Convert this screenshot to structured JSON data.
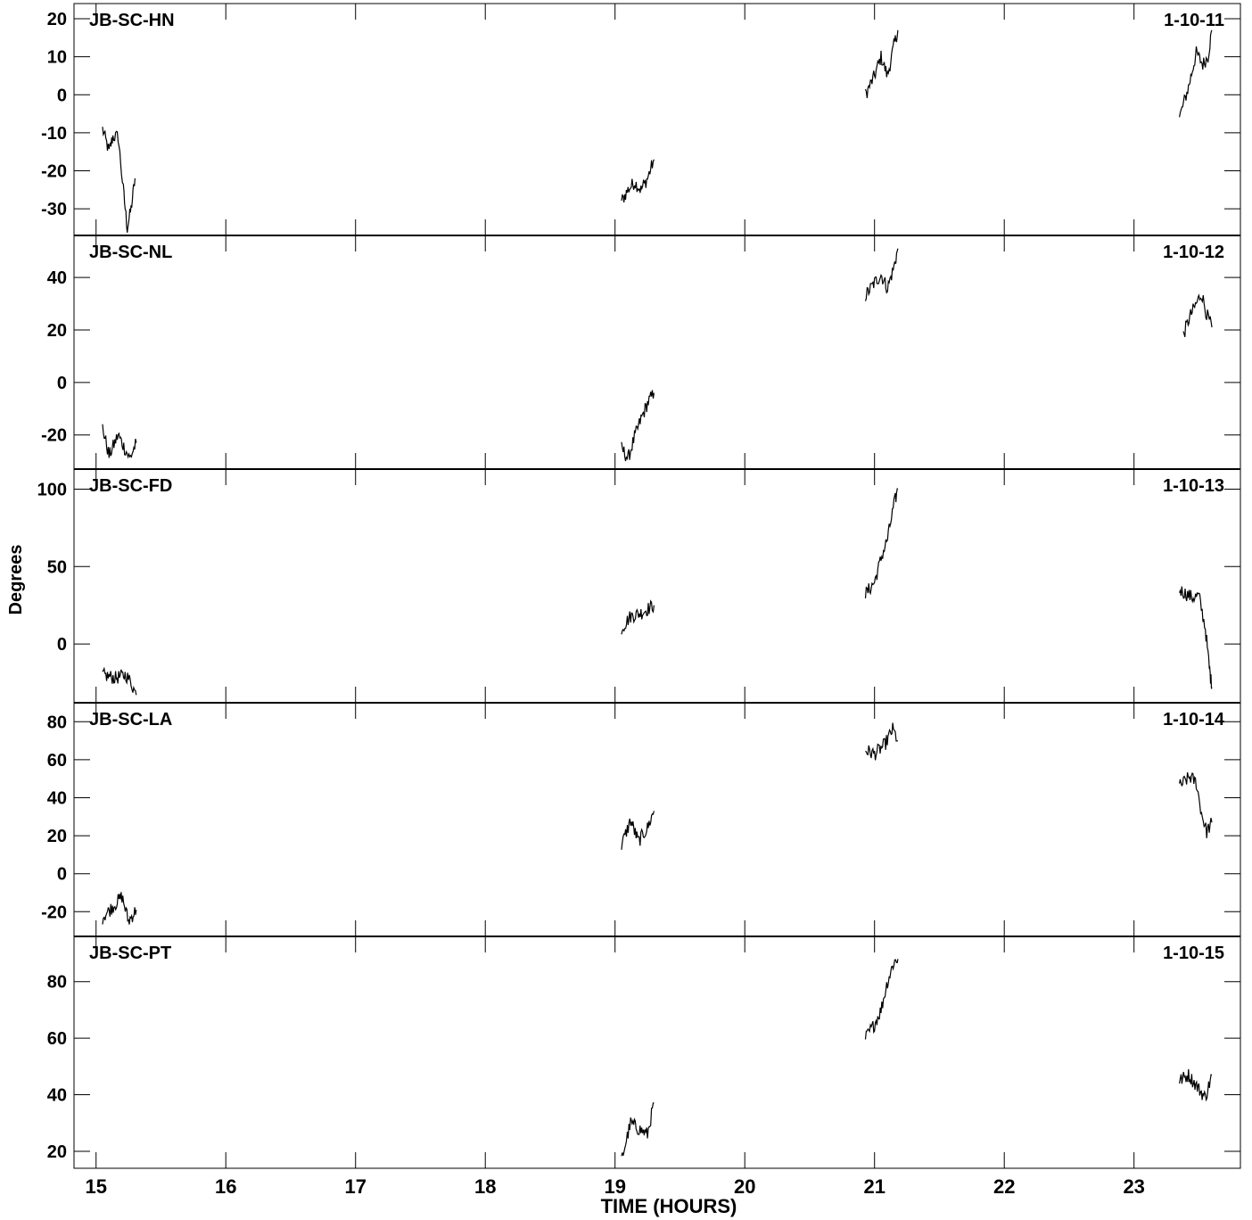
{
  "chart_data": {
    "type": "line",
    "ylabel": "Degrees",
    "xlabel": "TIME (HOURS)",
    "xlim": [
      14.83,
      23.82
    ],
    "x_ticks": [
      15,
      16,
      17,
      18,
      19,
      20,
      21,
      22,
      23
    ],
    "x_tick_labels": [
      "15",
      "16",
      "17",
      "18",
      "19",
      "20",
      "21",
      "22",
      "23"
    ],
    "color": "#000000",
    "panels": [
      {
        "baseline": "JB-SC-HN",
        "id": "1-10-11",
        "ylim": [
          -37,
          24
        ],
        "y_ticks": [
          20,
          10,
          0,
          -10,
          -20,
          -30
        ],
        "y_tick_labels": [
          "20",
          "10",
          "0",
          "-10",
          "-20",
          "-30"
        ],
        "segments": [
          [
            [
              15.05,
              -9
            ],
            [
              15.1,
              -15
            ],
            [
              15.13,
              -11
            ],
            [
              15.17,
              -11
            ],
            [
              15.21,
              -25
            ],
            [
              15.24,
              -35
            ],
            [
              15.27,
              -30
            ],
            [
              15.3,
              -22
            ]
          ],
          [
            [
              19.05,
              -28
            ],
            [
              19.1,
              -25
            ],
            [
              19.15,
              -23
            ],
            [
              19.2,
              -25
            ],
            [
              19.25,
              -22
            ],
            [
              19.3,
              -17
            ]
          ],
          [
            [
              20.93,
              0
            ],
            [
              21.0,
              5
            ],
            [
              21.05,
              10
            ],
            [
              21.1,
              5
            ],
            [
              21.15,
              13
            ],
            [
              21.18,
              17
            ]
          ],
          [
            [
              23.35,
              -6
            ],
            [
              23.42,
              2
            ],
            [
              23.48,
              11
            ],
            [
              23.53,
              8
            ],
            [
              23.57,
              10
            ],
            [
              23.6,
              17
            ]
          ]
        ]
      },
      {
        "baseline": "JB-SC-NL",
        "id": "1-10-12",
        "ylim": [
          -33,
          56
        ],
        "y_ticks": [
          40,
          20,
          0,
          -20
        ],
        "y_tick_labels": [
          "40",
          "20",
          "0",
          "-20"
        ],
        "segments": [
          [
            [
              15.05,
              -17
            ],
            [
              15.1,
              -28
            ],
            [
              15.17,
              -20
            ],
            [
              15.22,
              -25
            ],
            [
              15.26,
              -29
            ],
            [
              15.31,
              -23
            ]
          ],
          [
            [
              19.05,
              -25
            ],
            [
              19.1,
              -29
            ],
            [
              19.15,
              -21
            ],
            [
              19.2,
              -14
            ],
            [
              19.25,
              -8
            ],
            [
              19.3,
              -4
            ]
          ],
          [
            [
              20.93,
              33
            ],
            [
              21.0,
              38
            ],
            [
              21.05,
              41
            ],
            [
              21.1,
              36
            ],
            [
              21.15,
              44
            ],
            [
              21.18,
              51
            ]
          ],
          [
            [
              23.38,
              18
            ],
            [
              23.43,
              25
            ],
            [
              23.48,
              30
            ],
            [
              23.52,
              34
            ],
            [
              23.56,
              26
            ],
            [
              23.6,
              21
            ]
          ]
        ]
      },
      {
        "baseline": "JB-SC-FD",
        "id": "1-10-13",
        "ylim": [
          -38,
          113
        ],
        "y_ticks": [
          100,
          50,
          0
        ],
        "y_tick_labels": [
          "100",
          "50",
          "0"
        ],
        "segments": [
          [
            [
              15.05,
              -20
            ],
            [
              15.15,
              -22
            ],
            [
              15.23,
              -20
            ],
            [
              15.27,
              -25
            ],
            [
              15.31,
              -33
            ]
          ],
          [
            [
              19.05,
              10
            ],
            [
              19.12,
              18
            ],
            [
              19.2,
              20
            ],
            [
              19.3,
              25
            ]
          ],
          [
            [
              20.93,
              32
            ],
            [
              21.0,
              40
            ],
            [
              21.05,
              55
            ],
            [
              21.1,
              68
            ],
            [
              21.15,
              90
            ],
            [
              21.18,
              100
            ]
          ],
          [
            [
              23.35,
              35
            ],
            [
              23.45,
              30
            ],
            [
              23.5,
              31
            ],
            [
              23.55,
              10
            ],
            [
              23.58,
              -15
            ],
            [
              23.6,
              -28
            ]
          ]
        ]
      },
      {
        "baseline": "JB-SC-LA",
        "id": "1-10-14",
        "ylim": [
          -33,
          90
        ],
        "y_ticks": [
          80,
          60,
          40,
          20,
          0,
          -20
        ],
        "y_tick_labels": [
          "80",
          "60",
          "40",
          "20",
          "0",
          "-20"
        ],
        "segments": [
          [
            [
              15.05,
              -23
            ],
            [
              15.12,
              -18
            ],
            [
              15.2,
              -12
            ],
            [
              15.25,
              -25
            ],
            [
              15.31,
              -19
            ]
          ],
          [
            [
              19.05,
              15
            ],
            [
              19.12,
              28
            ],
            [
              19.18,
              17
            ],
            [
              19.25,
              24
            ],
            [
              19.3,
              33
            ]
          ],
          [
            [
              20.93,
              65
            ],
            [
              21.0,
              63
            ],
            [
              21.08,
              68
            ],
            [
              21.14,
              76
            ],
            [
              21.18,
              70
            ]
          ],
          [
            [
              23.35,
              46
            ],
            [
              23.43,
              51
            ],
            [
              23.48,
              48
            ],
            [
              23.52,
              32
            ],
            [
              23.56,
              22
            ],
            [
              23.6,
              27
            ]
          ]
        ]
      },
      {
        "baseline": "JB-SC-PT",
        "id": "1-10-15",
        "ylim": [
          14,
          96
        ],
        "y_ticks": [
          80,
          60,
          40,
          20
        ],
        "y_tick_labels": [
          "80",
          "60",
          "40",
          "20"
        ],
        "segments": [
          [
            [
              19.05,
              17
            ],
            [
              19.12,
              30
            ],
            [
              19.18,
              28
            ],
            [
              19.25,
              26
            ],
            [
              19.3,
              37
            ]
          ],
          [
            [
              20.93,
              60
            ],
            [
              21.0,
              65
            ],
            [
              21.05,
              70
            ],
            [
              21.1,
              80
            ],
            [
              21.15,
              87
            ],
            [
              21.18,
              88
            ]
          ],
          [
            [
              23.35,
              45
            ],
            [
              23.42,
              47
            ],
            [
              23.5,
              42
            ],
            [
              23.55,
              39
            ],
            [
              23.6,
              47
            ]
          ]
        ]
      }
    ]
  }
}
